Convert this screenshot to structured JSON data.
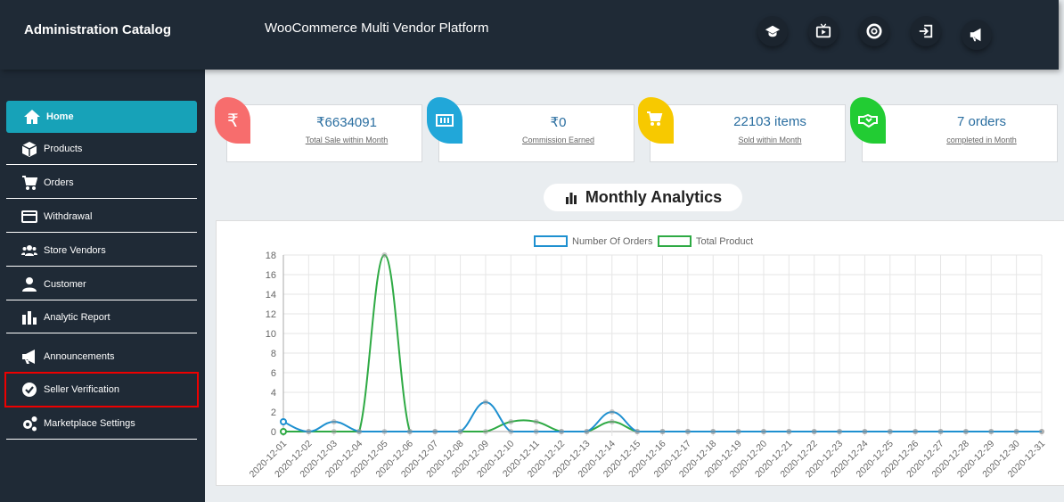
{
  "header": {
    "brand": "Administration Catalog",
    "platform": "WooCommerce Multi Vendor Platform",
    "icons": [
      "graduation-cap-icon",
      "tv-play-icon",
      "life-ring-icon",
      "sign-in-icon",
      "megaphone-icon"
    ]
  },
  "sidebar": {
    "items": [
      {
        "label": "Home",
        "icon": "home-icon",
        "active": true
      },
      {
        "label": "Products",
        "icon": "box-icon"
      },
      {
        "label": "Orders",
        "icon": "cart-icon"
      },
      {
        "label": "Withdrawal",
        "icon": "credit-card-icon"
      },
      {
        "label": "Store Vendors",
        "icon": "users-icon"
      },
      {
        "label": "Customer",
        "icon": "user-icon"
      },
      {
        "label": "Analytic Report",
        "icon": "bar-chart-icon"
      },
      {
        "label": "Announcements",
        "icon": "megaphone-icon"
      },
      {
        "label": "Seller Verification",
        "icon": "check-circle-icon",
        "highlighted": true
      },
      {
        "label": "Marketplace Settings",
        "icon": "gears-icon"
      }
    ]
  },
  "cards": [
    {
      "value": "₹6634091",
      "label": "Total Sale within Month",
      "color": "#f76d6d",
      "icon": "rupee-icon"
    },
    {
      "value": "₹0",
      "label": "Commission Earned",
      "color": "#21a7d9",
      "icon": "money-icon"
    },
    {
      "value": "22103 items",
      "label": "Sold within Month",
      "color": "#f7c900",
      "icon": "cart-icon"
    },
    {
      "value": "7 orders",
      "label": "completed in Month",
      "color": "#22cc33",
      "icon": "handshake-icon"
    }
  ],
  "section_title": "Monthly Analytics",
  "chart_data": {
    "type": "line",
    "ylim": [
      0,
      18
    ],
    "yticks": [
      0,
      2,
      4,
      6,
      8,
      10,
      12,
      14,
      16,
      18
    ],
    "grid": true,
    "legend": "top",
    "categories": [
      "2020-12-01",
      "2020-12-02",
      "2020-12-03",
      "2020-12-04",
      "2020-12-05",
      "2020-12-06",
      "2020-12-07",
      "2020-12-08",
      "2020-12-09",
      "2020-12-10",
      "2020-12-11",
      "2020-12-12",
      "2020-12-13",
      "2020-12-14",
      "2020-12-15",
      "2020-12-16",
      "2020-12-17",
      "2020-12-18",
      "2020-12-19",
      "2020-12-20",
      "2020-12-21",
      "2020-12-22",
      "2020-12-23",
      "2020-12-24",
      "2020-12-25",
      "2020-12-26",
      "2020-12-27",
      "2020-12-28",
      "2020-12-29",
      "2020-12-30",
      "2020-12-31"
    ],
    "series": [
      {
        "name": "Number Of Orders",
        "color": "#1e90d0",
        "values": [
          1,
          0,
          1,
          0,
          0,
          0,
          0,
          0,
          3,
          0,
          0,
          0,
          0,
          2,
          0,
          0,
          0,
          0,
          0,
          0,
          0,
          0,
          0,
          0,
          0,
          0,
          0,
          0,
          0,
          0,
          0
        ]
      },
      {
        "name": "Total Product",
        "color": "#2eaa44",
        "values": [
          0,
          0,
          0,
          0,
          18,
          0,
          0,
          0,
          0,
          1,
          1,
          0,
          0,
          1,
          0,
          0,
          0,
          0,
          0,
          0,
          0,
          0,
          0,
          0,
          0,
          0,
          0,
          0,
          0,
          0,
          0
        ]
      }
    ]
  }
}
